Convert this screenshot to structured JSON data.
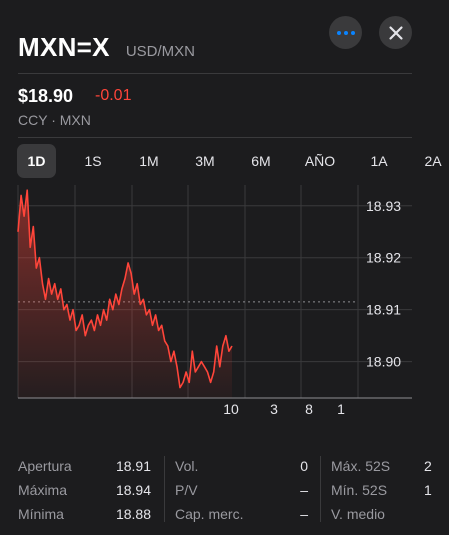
{
  "header": {
    "symbol": "MXN=X",
    "pair": "USD/MXN",
    "price": "$18.90",
    "change": "-0.01",
    "subline": "CCY · MXN"
  },
  "ranges": [
    {
      "label": "1D",
      "active": true
    },
    {
      "label": "1S",
      "active": false
    },
    {
      "label": "1M",
      "active": false
    },
    {
      "label": "3M",
      "active": false
    },
    {
      "label": "6M",
      "active": false
    },
    {
      "label": "AÑO",
      "active": false
    },
    {
      "label": "1A",
      "active": false
    },
    {
      "label": "2A",
      "active": false
    }
  ],
  "colors": {
    "line": "#ff453a",
    "accent": "#0a84ff"
  },
  "chart_data": {
    "type": "area",
    "x_tick_labels": [
      "10",
      "3",
      "8",
      "1"
    ],
    "y_tick_labels": [
      "18.93",
      "18.92",
      "18.91",
      "18.90"
    ],
    "ylim": [
      18.893,
      18.934
    ],
    "previous_close": 18.9115,
    "values": [
      18.925,
      18.932,
      18.928,
      18.933,
      18.922,
      18.926,
      18.918,
      18.92,
      18.915,
      18.912,
      18.916,
      18.913,
      18.915,
      18.912,
      18.914,
      18.91,
      18.911,
      18.908,
      18.91,
      18.906,
      18.907,
      18.909,
      18.905,
      18.907,
      18.908,
      18.906,
      18.909,
      18.907,
      18.91,
      18.908,
      18.912,
      18.91,
      18.913,
      18.911,
      18.914,
      18.916,
      18.919,
      18.917,
      18.913,
      18.915,
      18.911,
      18.912,
      18.909,
      18.91,
      18.907,
      18.909,
      18.906,
      18.907,
      18.904,
      18.903,
      18.9,
      18.902,
      18.899,
      18.895,
      18.896,
      18.898,
      18.896,
      18.902,
      18.898,
      18.899,
      18.9,
      18.899,
      18.898,
      18.896,
      18.898,
      18.903,
      18.899,
      18.903,
      18.905,
      18.902,
      18.903
    ]
  },
  "stats": {
    "col1": [
      {
        "label": "Apertura",
        "value": "18.91"
      },
      {
        "label": "Máxima",
        "value": "18.94"
      },
      {
        "label": "Mínima",
        "value": "18.88"
      }
    ],
    "col2": [
      {
        "label": "Vol.",
        "value": "0"
      },
      {
        "label": "P/V",
        "value": "–"
      },
      {
        "label": "Cap. merc.",
        "value": "–"
      }
    ],
    "col3": [
      {
        "label": "Máx. 52S",
        "value": "2"
      },
      {
        "label": "Mín. 52S",
        "value": "1"
      },
      {
        "label": "V. medio",
        "value": ""
      }
    ]
  }
}
